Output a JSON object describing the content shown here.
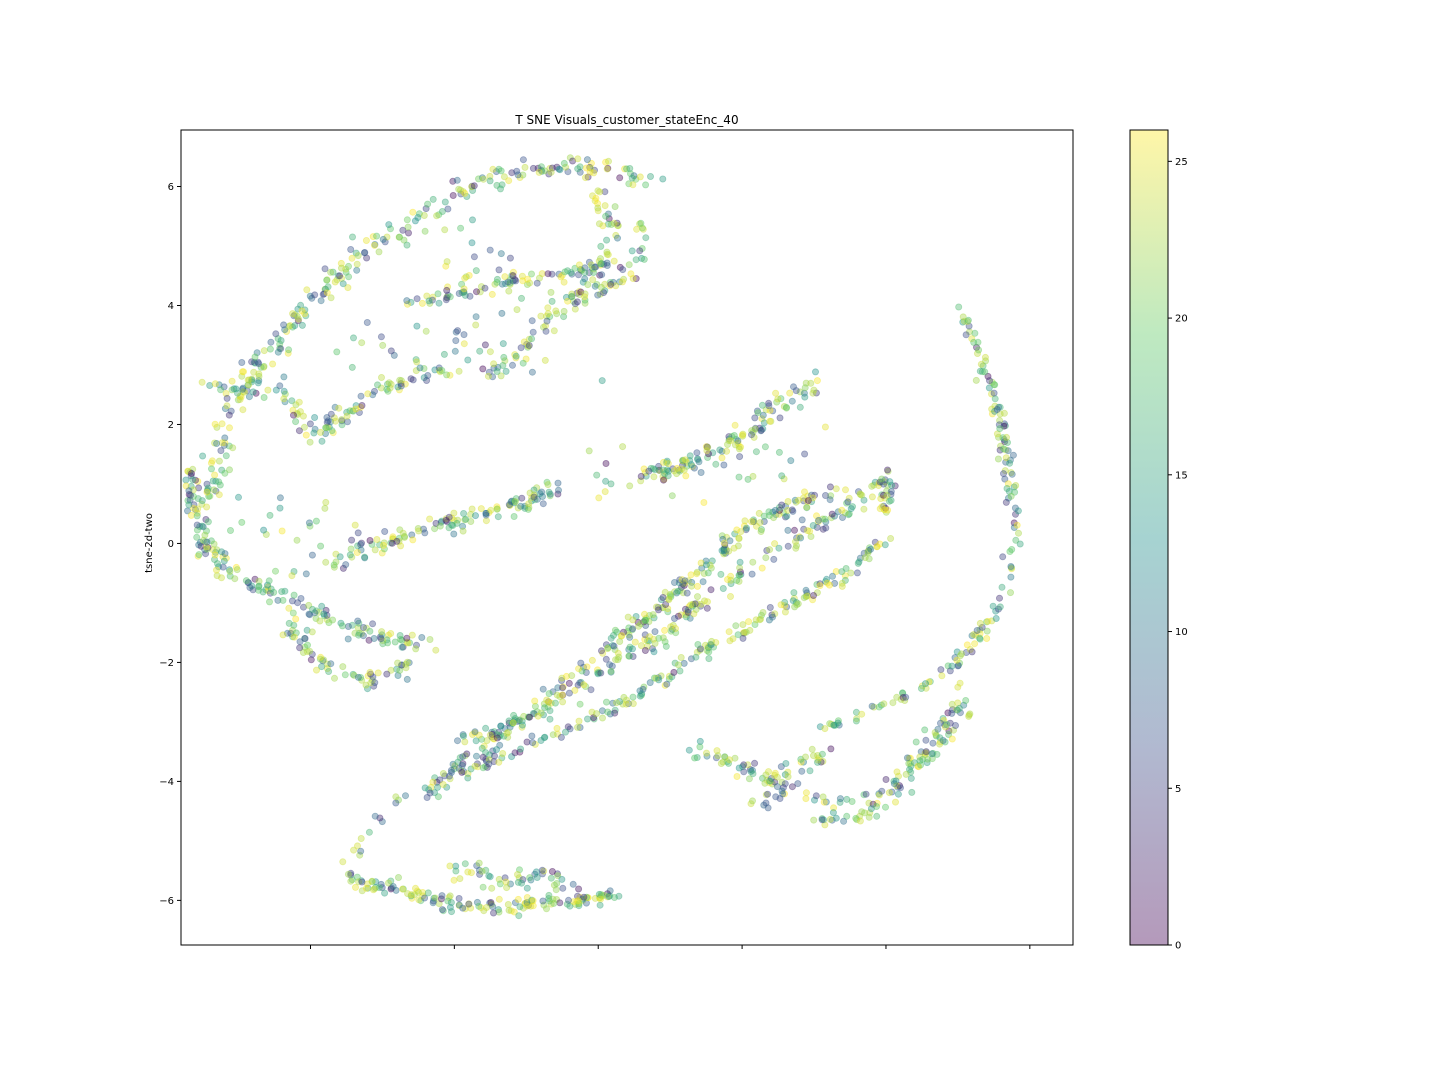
{
  "chart_data": {
    "type": "scatter",
    "title": "T SNE Visuals_customer_stateEnc_40",
    "xlabel": "",
    "ylabel": "tsne-2d-two",
    "xlim": [
      -6.8,
      5.6
    ],
    "ylim": [
      -6.75,
      6.95
    ],
    "x_ticks": [
      -5.0,
      -3.0,
      -1.0,
      1.0,
      3.0,
      5.0
    ],
    "y_ticks": [
      -6,
      -4,
      -2,
      0,
      2,
      4,
      6
    ],
    "y_tick_labels": [
      "−6",
      "−4",
      "−2",
      "0",
      "2",
      "4",
      "6"
    ],
    "x_tick_labels_shown": false,
    "grid": false,
    "marker_alpha": 0.4,
    "colormap": "viridis",
    "colormap_stops": [
      "#440154",
      "#3b528b",
      "#21918c",
      "#5ec962",
      "#fde725"
    ],
    "colorbar": {
      "range": [
        0,
        26
      ],
      "ticks": [
        0,
        5,
        10,
        15,
        20,
        25
      ],
      "tick_labels": [
        "0",
        "5",
        "10",
        "15",
        "20",
        "25"
      ]
    },
    "point_count_approx": 2700,
    "clusters": [
      {
        "name": "upper-arc-outer",
        "path": [
          [
            -6.5,
            0.5
          ],
          [
            -6.3,
            1.3
          ],
          [
            -6.2,
            2.0
          ],
          [
            -5.8,
            2.8
          ],
          [
            -5.3,
            3.6
          ],
          [
            -4.8,
            4.3
          ],
          [
            -4.2,
            4.9
          ],
          [
            -3.6,
            5.4
          ],
          [
            -3.1,
            5.8
          ],
          [
            -2.6,
            6.1
          ],
          [
            -1.9,
            6.3
          ],
          [
            -1.2,
            6.3
          ],
          [
            -0.7,
            6.2
          ],
          [
            -0.2,
            6.1
          ]
        ],
        "n": 270,
        "spread": 0.09
      },
      {
        "name": "upper-arc-inner",
        "path": [
          [
            -6.4,
            2.7
          ],
          [
            -5.9,
            2.5
          ],
          [
            -5.5,
            2.7
          ],
          [
            -5.2,
            2.2
          ],
          [
            -4.9,
            1.8
          ],
          [
            -4.5,
            2.2
          ],
          [
            -4.0,
            2.6
          ],
          [
            -3.5,
            2.8
          ],
          [
            -3.0,
            2.9
          ]
        ],
        "n": 110,
        "spread": 0.07
      },
      {
        "name": "upper-arc-mid",
        "path": [
          [
            -3.6,
            4.0
          ],
          [
            -3.0,
            4.2
          ],
          [
            -2.4,
            4.4
          ],
          [
            -1.8,
            4.5
          ],
          [
            -1.3,
            4.6
          ],
          [
            -0.9,
            4.7
          ]
        ],
        "n": 80,
        "spread": 0.06
      },
      {
        "name": "upper-arc-drop",
        "path": [
          [
            -1.0,
            6.0
          ],
          [
            -0.8,
            5.4
          ],
          [
            -0.9,
            4.8
          ],
          [
            -1.3,
            4.2
          ],
          [
            -1.8,
            3.6
          ],
          [
            -2.2,
            3.1
          ],
          [
            -2.6,
            2.8
          ]
        ],
        "n": 80,
        "spread": 0.08
      },
      {
        "name": "upper-arc-right",
        "path": [
          [
            -0.4,
            5.5
          ],
          [
            -0.4,
            5.0
          ],
          [
            -0.6,
            4.5
          ],
          [
            -1.1,
            4.2
          ],
          [
            -1.5,
            3.9
          ]
        ],
        "n": 45,
        "spread": 0.07
      },
      {
        "name": "upper-arc-interior",
        "path": [
          [
            -4.2,
            3.5
          ],
          [
            -3.4,
            3.3
          ],
          [
            -2.6,
            3.3
          ],
          [
            -2.0,
            3.1
          ],
          [
            -1.6,
            3.8
          ],
          [
            -2.6,
            4.8
          ],
          [
            -3.4,
            5.0
          ]
        ],
        "n": 70,
        "spread": 0.35
      },
      {
        "name": "left-lobe",
        "path": [
          [
            -6.6,
            1.2
          ],
          [
            -6.7,
            0.6
          ],
          [
            -6.5,
            0.1
          ],
          [
            -6.2,
            -0.4
          ],
          [
            -5.6,
            -0.8
          ],
          [
            -5.0,
            -1.1
          ],
          [
            -4.5,
            -1.4
          ],
          [
            -3.8,
            -1.6
          ],
          [
            -3.3,
            -1.7
          ]
        ],
        "n": 170,
        "spread": 0.08
      },
      {
        "name": "left-lobe-lower",
        "path": [
          [
            -5.3,
            -1.4
          ],
          [
            -5.0,
            -1.8
          ],
          [
            -4.6,
            -2.1
          ],
          [
            -4.2,
            -2.3
          ],
          [
            -3.8,
            -2.2
          ],
          [
            -3.6,
            -2.0
          ]
        ],
        "n": 65,
        "spread": 0.08
      },
      {
        "name": "left-lobe-scatter",
        "path": [
          [
            -6.3,
            0.5
          ],
          [
            -5.8,
            0.6
          ],
          [
            -5.3,
            0.4
          ],
          [
            -4.9,
            0.7
          ],
          [
            -4.7,
            0.1
          ],
          [
            -5.0,
            -0.5
          ]
        ],
        "n": 30,
        "spread": 0.25
      },
      {
        "name": "mid-band-upper",
        "path": [
          [
            -4.5,
            -0.3
          ],
          [
            -4.0,
            0.0
          ],
          [
            -3.5,
            0.2
          ],
          [
            -3.0,
            0.4
          ],
          [
            -2.5,
            0.5
          ],
          [
            -2.0,
            0.7
          ],
          [
            -1.6,
            0.9
          ]
        ],
        "n": 120,
        "spread": 0.08
      },
      {
        "name": "mid-band-upper-right",
        "path": [
          [
            -0.4,
            1.2
          ],
          [
            0.1,
            1.3
          ],
          [
            0.6,
            1.5
          ],
          [
            1.0,
            1.8
          ],
          [
            1.3,
            2.1
          ],
          [
            1.6,
            2.4
          ],
          [
            2.0,
            2.7
          ]
        ],
        "n": 130,
        "spread": 0.09
      },
      {
        "name": "main-diag-dark",
        "path": [
          [
            -3.3,
            -4.0
          ],
          [
            -2.8,
            -3.6
          ],
          [
            -2.2,
            -3.1
          ],
          [
            -1.7,
            -2.6
          ],
          [
            -1.2,
            -2.1
          ],
          [
            -0.7,
            -1.6
          ],
          [
            -0.1,
            -1.0
          ],
          [
            0.5,
            -0.4
          ],
          [
            1.0,
            0.2
          ],
          [
            1.6,
            0.6
          ],
          [
            2.3,
            0.9
          ]
        ],
        "n": 240,
        "spread": 0.07
      },
      {
        "name": "main-diag-mid",
        "path": [
          [
            -3.0,
            -3.3
          ],
          [
            -2.3,
            -3.1
          ],
          [
            -1.7,
            -2.8
          ],
          [
            -1.2,
            -2.4
          ],
          [
            -0.6,
            -1.9
          ],
          [
            0.0,
            -1.4
          ],
          [
            0.6,
            -0.8
          ],
          [
            1.2,
            -0.3
          ],
          [
            1.8,
            0.1
          ],
          [
            2.4,
            0.6
          ],
          [
            3.0,
            1.0
          ]
        ],
        "n": 200,
        "spread": 0.08
      },
      {
        "name": "main-diag-yellow",
        "path": [
          [
            -3.4,
            -4.2
          ],
          [
            -2.8,
            -3.8
          ],
          [
            -2.2,
            -3.5
          ],
          [
            -1.6,
            -3.2
          ],
          [
            -1.0,
            -2.9
          ],
          [
            -0.4,
            -2.5
          ],
          [
            0.2,
            -2.0
          ],
          [
            0.8,
            -1.6
          ],
          [
            1.4,
            -1.2
          ],
          [
            2.0,
            -0.8
          ],
          [
            2.6,
            -0.4
          ],
          [
            3.0,
            0.1
          ]
        ],
        "n": 200,
        "spread": 0.06
      },
      {
        "name": "main-diag-cap",
        "path": [
          [
            3.0,
            1.3
          ],
          [
            3.0,
            0.9
          ],
          [
            3.0,
            0.5
          ]
        ],
        "n": 25,
        "spread": 0.05
      },
      {
        "name": "bottom-hook",
        "path": [
          [
            -4.6,
            -5.5
          ],
          [
            -4.3,
            -5.7
          ],
          [
            -3.8,
            -5.8
          ],
          [
            -3.3,
            -6.0
          ],
          [
            -2.8,
            -6.1
          ],
          [
            -2.2,
            -6.1
          ],
          [
            -1.7,
            -6.0
          ],
          [
            -1.2,
            -6.0
          ],
          [
            -0.8,
            -5.9
          ]
        ],
        "n": 150,
        "spread": 0.06
      },
      {
        "name": "bottom-hook-upper",
        "path": [
          [
            -3.2,
            -5.6
          ],
          [
            -2.8,
            -5.5
          ],
          [
            -2.4,
            -5.7
          ],
          [
            -2.0,
            -5.6
          ],
          [
            -1.6,
            -5.6
          ],
          [
            -1.4,
            -5.8
          ]
        ],
        "n": 50,
        "spread": 0.08
      },
      {
        "name": "bottom-tail",
        "path": [
          [
            -3.7,
            -4.2
          ],
          [
            -4.0,
            -4.6
          ],
          [
            -4.3,
            -5.0
          ],
          [
            -4.5,
            -5.4
          ]
        ],
        "n": 14,
        "spread": 0.05
      },
      {
        "name": "right-arc",
        "path": [
          [
            4.0,
            4.0
          ],
          [
            4.2,
            3.5
          ],
          [
            4.4,
            2.8
          ],
          [
            4.6,
            2.0
          ],
          [
            4.7,
            1.2
          ],
          [
            4.8,
            0.4
          ],
          [
            4.7,
            -0.4
          ],
          [
            4.5,
            -1.2
          ],
          [
            4.0,
            -2.0
          ],
          [
            3.4,
            -2.5
          ],
          [
            2.8,
            -2.8
          ],
          [
            2.2,
            -3.1
          ]
        ],
        "n": 170,
        "spread": 0.05
      },
      {
        "name": "right-lower-loop",
        "path": [
          [
            0.3,
            -3.5
          ],
          [
            0.9,
            -3.7
          ],
          [
            1.5,
            -4.0
          ],
          [
            2.0,
            -4.3
          ],
          [
            2.5,
            -4.4
          ],
          [
            3.0,
            -4.1
          ],
          [
            3.5,
            -3.5
          ],
          [
            3.9,
            -2.9
          ],
          [
            4.1,
            -2.4
          ]
        ],
        "n": 110,
        "spread": 0.08
      },
      {
        "name": "right-lower-inner",
        "path": [
          [
            1.2,
            -4.4
          ],
          [
            1.4,
            -4.1
          ],
          [
            1.8,
            -3.7
          ],
          [
            2.3,
            -3.6
          ]
        ],
        "n": 40,
        "spread": 0.1
      },
      {
        "name": "right-lower-bottom",
        "path": [
          [
            2.0,
            -4.7
          ],
          [
            2.5,
            -4.6
          ],
          [
            2.8,
            -4.5
          ],
          [
            3.1,
            -4.2
          ],
          [
            3.4,
            -3.8
          ],
          [
            3.8,
            -3.3
          ],
          [
            4.2,
            -2.9
          ]
        ],
        "n": 60,
        "spread": 0.07
      },
      {
        "name": "sparse-center",
        "path": [
          [
            -1.7,
            1.2
          ],
          [
            -1.0,
            1.1
          ],
          [
            -0.4,
            0.8
          ],
          [
            0.2,
            0.7
          ],
          [
            0.8,
            1.0
          ],
          [
            1.5,
            1.5
          ],
          [
            2.0,
            1.8
          ]
        ],
        "n": 25,
        "spread": 0.3
      }
    ]
  }
}
